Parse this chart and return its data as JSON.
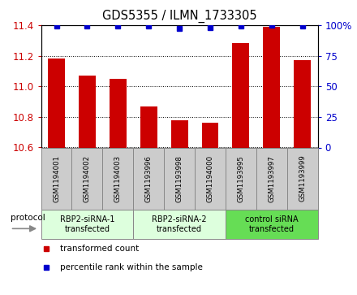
{
  "title": "GDS5355 / ILMN_1733305",
  "samples": [
    "GSM1194001",
    "GSM1194002",
    "GSM1194003",
    "GSM1193996",
    "GSM1193998",
    "GSM1194000",
    "GSM1193995",
    "GSM1193997",
    "GSM1193999"
  ],
  "bar_values": [
    11.18,
    11.07,
    11.05,
    10.87,
    10.78,
    10.76,
    11.28,
    11.39,
    11.17
  ],
  "percentile_values": [
    99,
    99,
    99,
    99,
    97,
    98,
    99,
    100,
    99
  ],
  "bar_color": "#cc0000",
  "dot_color": "#0000cc",
  "ylim_left": [
    10.6,
    11.4
  ],
  "ylim_right": [
    0,
    100
  ],
  "yticks_left": [
    10.6,
    10.8,
    11.0,
    11.2,
    11.4
  ],
  "yticks_right": [
    0,
    25,
    50,
    75,
    100
  ],
  "ytick_labels_right": [
    "0",
    "25",
    "50",
    "75",
    "100%"
  ],
  "groups": [
    {
      "label": "RBP2-siRNA-1\ntransfected",
      "indices": [
        0,
        1,
        2
      ],
      "color": "#ddffdd"
    },
    {
      "label": "RBP2-siRNA-2\ntransfected",
      "indices": [
        3,
        4,
        5
      ],
      "color": "#ddffdd"
    },
    {
      "label": "control siRNA\ntransfected",
      "indices": [
        6,
        7,
        8
      ],
      "color": "#66dd55"
    }
  ],
  "legend_items": [
    {
      "label": "transformed count",
      "color": "#cc0000"
    },
    {
      "label": "percentile rank within the sample",
      "color": "#0000cc"
    }
  ],
  "protocol_label": "protocol",
  "background_color": "#ffffff",
  "bar_width": 0.55,
  "sample_box_color": "#cccccc",
  "sample_box_edgecolor": "#888888"
}
